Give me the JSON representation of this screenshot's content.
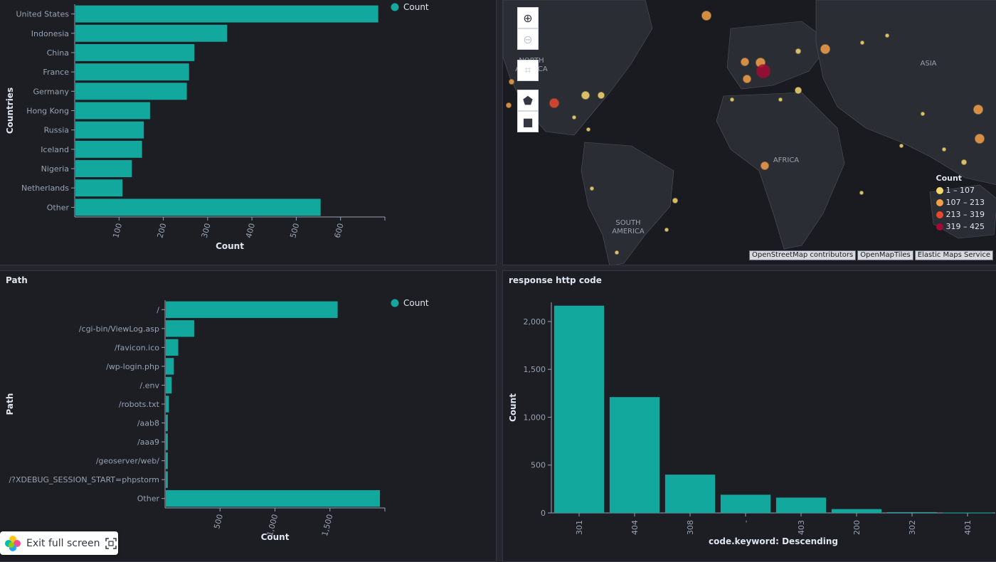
{
  "colors": {
    "bar": "#13a89e",
    "map_yellow": "#f5d76e",
    "map_orange": "#f2a049",
    "map_red": "#e7492d",
    "map_darkred": "#a30b32"
  },
  "panels": {
    "countries": {
      "title": "",
      "legend_label": "Count"
    },
    "path": {
      "title": "Path",
      "legend_label": "Count"
    },
    "response": {
      "title": "response http code"
    },
    "map": {
      "continent_labels": [
        "NORTH AMERICA",
        "ASIA",
        "AFRICA",
        "SOUTH AMERICA"
      ],
      "legend": {
        "title": "Count",
        "items": [
          {
            "label": "1 – 107",
            "color": "#f5d76e"
          },
          {
            "label": "107 – 213",
            "color": "#f2a049"
          },
          {
            "label": "213 – 319",
            "color": "#e7492d"
          },
          {
            "label": "319 – 425",
            "color": "#a30b32"
          }
        ]
      },
      "attribution": [
        "OpenStreetMap contributors",
        "OpenMapTiles",
        "Elastic Maps Service"
      ],
      "controls": [
        "plus-icon",
        "minus-icon",
        "crop-icon",
        "polygon-icon",
        "square-icon"
      ]
    }
  },
  "exit_fullscreen": {
    "label": "Exit full screen"
  },
  "chart_data": [
    {
      "type": "bar",
      "orientation": "horizontal",
      "categories": [
        "United States",
        "Indonesia",
        "China",
        "France",
        "Germany",
        "Hong Kong",
        "Russia",
        "Iceland",
        "Nigeria",
        "Netherlands",
        "Other"
      ],
      "values": [
        685,
        344,
        270,
        258,
        253,
        170,
        156,
        152,
        129,
        108,
        555
      ],
      "series": [
        {
          "name": "Count"
        }
      ],
      "xlabel": "Count",
      "ylabel": "Countries",
      "xticks": [
        "100",
        "200",
        "300",
        "400",
        "500",
        "600"
      ],
      "xlim": [
        0,
        700
      ],
      "legend": "top-right"
    },
    {
      "type": "bar",
      "orientation": "horizontal",
      "categories": [
        "/",
        "/cgi-bin/ViewLog.asp",
        "/favicon.ico",
        "/wp-login.php",
        "/.env",
        "/robots.txt",
        "/aab8",
        "/aaa9",
        "/geoserver/web/",
        "/?XDEBUG_SESSION_START=phpstorm",
        "Other"
      ],
      "values": [
        1570,
        265,
        120,
        80,
        60,
        35,
        25,
        25,
        25,
        25,
        1955
      ],
      "series": [
        {
          "name": "Count"
        }
      ],
      "xlabel": "Count",
      "ylabel": "Path",
      "xticks": [
        "500",
        "1,000",
        "1,500"
      ],
      "xlim": [
        0,
        2000
      ],
      "legend": "top-right"
    },
    {
      "type": "bar",
      "orientation": "vertical",
      "title": "response http code",
      "categories": [
        "301",
        "404",
        "308",
        "-",
        "403",
        "200",
        "302",
        "401"
      ],
      "values": [
        2165,
        1210,
        400,
        190,
        160,
        40,
        8,
        3
      ],
      "xlabel": "code.keyword: Descending",
      "ylabel": "Count",
      "yticks": [
        "0",
        "500",
        "1,000",
        "1,500",
        "2,000"
      ],
      "ylim": [
        0,
        2200
      ]
    }
  ]
}
